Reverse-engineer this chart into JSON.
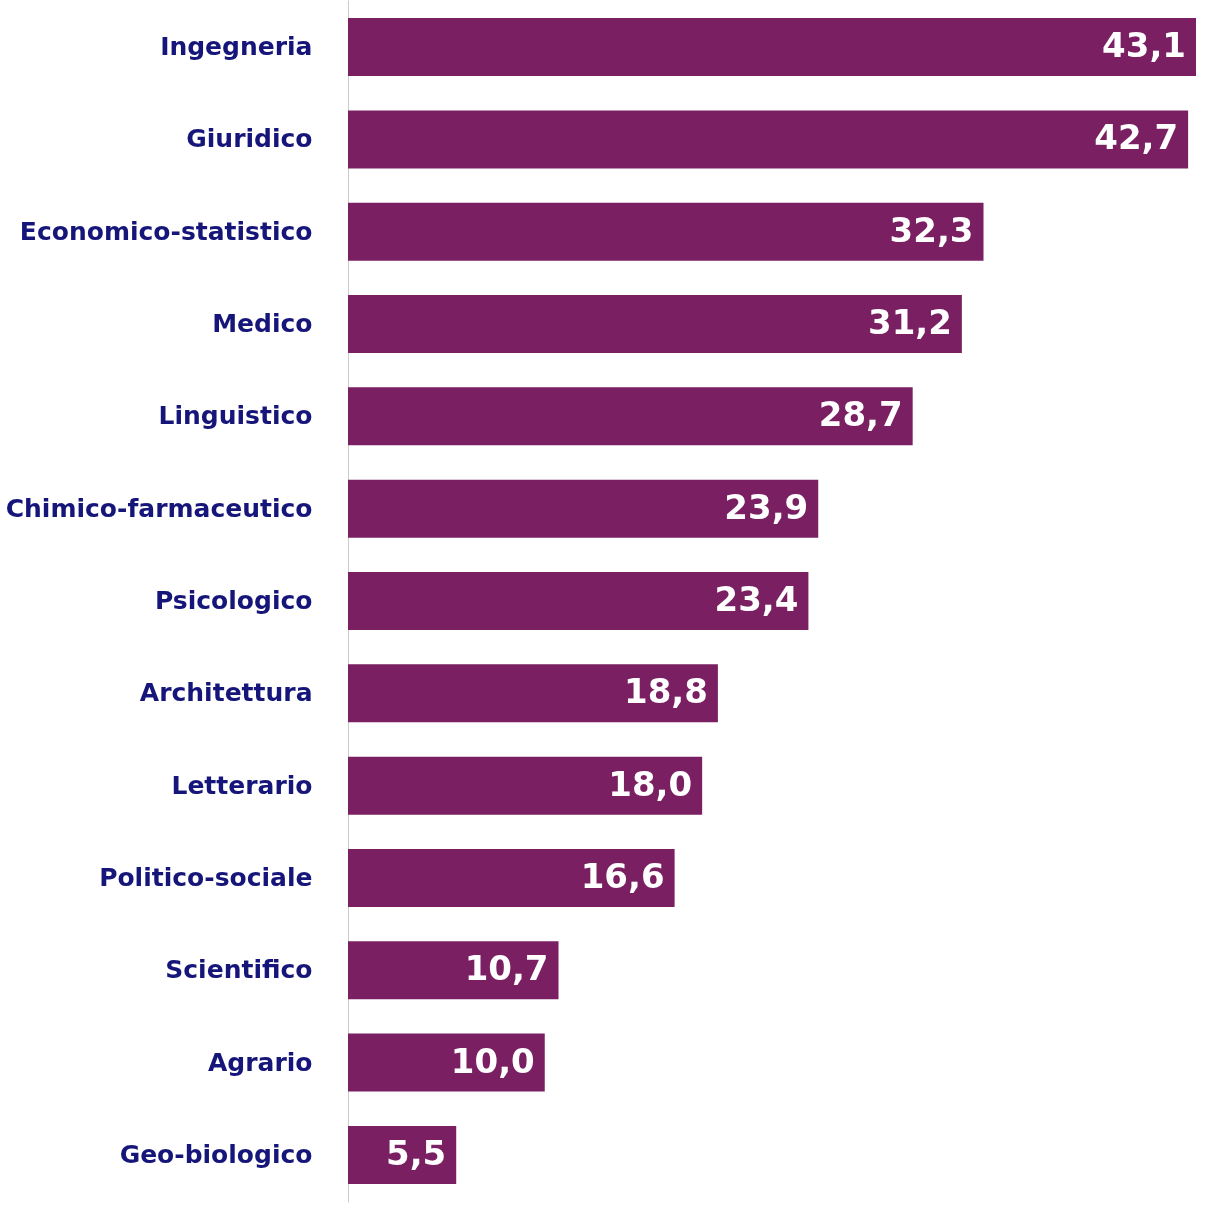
{
  "chart_data": {
    "type": "bar",
    "orientation": "horizontal",
    "categories": [
      "Ingegneria",
      "Giuridico",
      "Economico-statistico",
      "Medico",
      "Linguistico",
      "Chimico-farmaceutico",
      "Psicologico",
      "Architettura",
      "Letterario",
      "Politico-sociale",
      "Scientifico",
      "Agrario",
      "Geo-biologico"
    ],
    "values": [
      43.1,
      42.7,
      32.3,
      31.2,
      28.7,
      23.9,
      23.4,
      18.8,
      18.0,
      16.6,
      10.7,
      10.0,
      5.5
    ],
    "value_labels": [
      "43,1",
      "42,7",
      "32,3",
      "31,2",
      "28,7",
      "23,9",
      "23,4",
      "18,8",
      "18,0",
      "16,6",
      "10,7",
      "10,0",
      "5,5"
    ],
    "color": "#7a1f62"
  }
}
